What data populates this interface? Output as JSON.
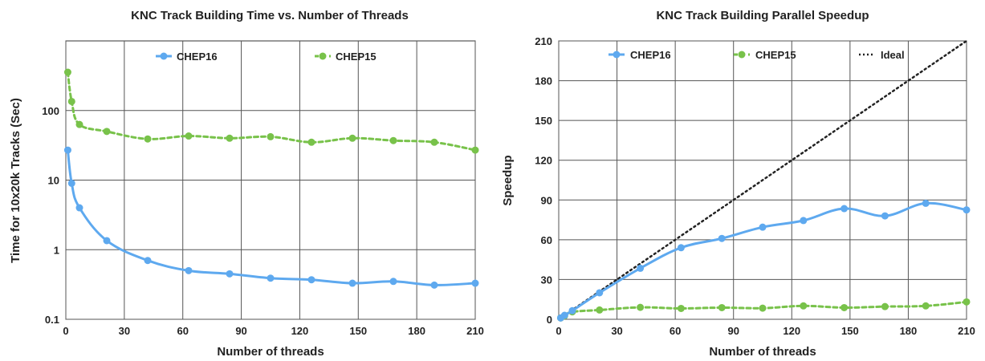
{
  "chart_data": [
    {
      "type": "line",
      "title": "KNC Track Building Time vs. Number of Threads",
      "xlabel": "Number of threads",
      "ylabel": "Time for 10x20k Tracks (Sec)",
      "xlim": [
        0,
        210
      ],
      "xticks": [
        "0",
        "30",
        "60",
        "90",
        "120",
        "150",
        "180",
        "210"
      ],
      "ylim": [
        0.1,
        1000
      ],
      "yscale": "log",
      "yticks": [
        "0.1",
        "1",
        "10",
        "100"
      ],
      "grid": true,
      "legend_position": "top",
      "series": [
        {
          "name": "CHEP16",
          "color": "#5ea9ef",
          "line_style": "solid",
          "x": [
            1,
            3,
            7,
            21,
            42,
            63,
            84,
            105,
            126,
            147,
            168,
            189,
            210
          ],
          "values": [
            27,
            9,
            4,
            1.35,
            0.7,
            0.5,
            0.45,
            0.39,
            0.37,
            0.33,
            0.35,
            0.31,
            0.33
          ]
        },
        {
          "name": "CHEP15",
          "color": "#78c24a",
          "line_style": "dashed",
          "x": [
            1,
            3,
            7,
            21,
            42,
            63,
            84,
            105,
            126,
            147,
            168,
            189,
            210
          ],
          "values": [
            355,
            135,
            63,
            50,
            39,
            43,
            40,
            42,
            35,
            40,
            37,
            35,
            27
          ]
        }
      ]
    },
    {
      "type": "line",
      "title": "KNC Track Building Parallel Speedup",
      "xlabel": "Number of threads",
      "ylabel": "Speedup",
      "xlim": [
        0,
        210
      ],
      "xticks": [
        "0",
        "30",
        "60",
        "90",
        "120",
        "150",
        "180",
        "210"
      ],
      "ylim": [
        0,
        210
      ],
      "yticks": [
        "0",
        "30",
        "60",
        "90",
        "120",
        "150",
        "180",
        "210"
      ],
      "grid": true,
      "legend_position": "top",
      "series": [
        {
          "name": "CHEP16",
          "color": "#5ea9ef",
          "line_style": "solid",
          "x": [
            1,
            3,
            7,
            21,
            42,
            63,
            84,
            105,
            126,
            147,
            168,
            189,
            210
          ],
          "values": [
            1,
            3,
            6.5,
            20,
            38.5,
            54,
            61,
            69.5,
            74.5,
            83.5,
            78,
            87.5,
            82.5
          ]
        },
        {
          "name": "CHEP15",
          "color": "#78c24a",
          "line_style": "dashed",
          "x": [
            1,
            3,
            7,
            21,
            42,
            63,
            84,
            105,
            126,
            147,
            168,
            189,
            210
          ],
          "values": [
            1,
            2.6,
            5.6,
            7,
            9,
            8.2,
            8.8,
            8.4,
            10.1,
            8.8,
            9.6,
            10.1,
            13.1
          ]
        },
        {
          "name": "Ideal",
          "color": "#222222",
          "line_style": "dotted",
          "x": [
            0,
            210
          ],
          "values": [
            0,
            210
          ]
        }
      ]
    }
  ]
}
